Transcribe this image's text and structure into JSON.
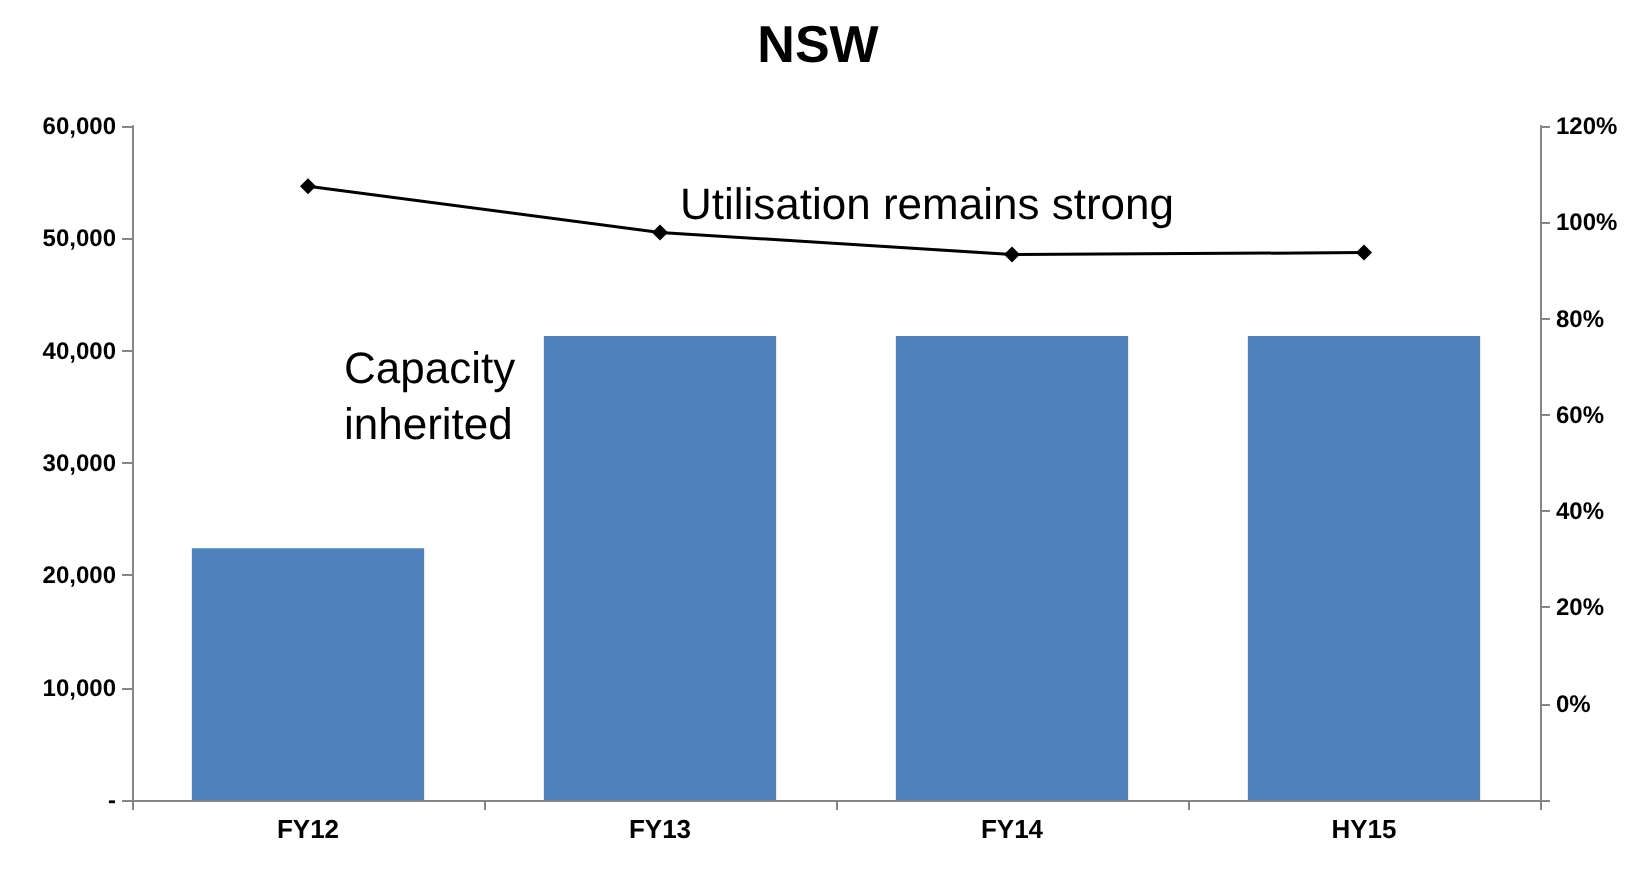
{
  "chart_data": {
    "type": "bar",
    "title": "NSW",
    "categories": [
      "FY12",
      "FY13",
      "FY14",
      "HY15"
    ],
    "series": [
      {
        "color": "#4f81bd",
        "values": [
          22400,
          41300,
          41300,
          41300
        ]
      },
      {
        "type": "line",
        "axis": "y2",
        "color": "#000000",
        "values": [
          107.5,
          97.9,
          93.3,
          93.7
        ]
      }
    ],
    "ylim": [
      0,
      60000
    ],
    "yticks": [
      {
        "value": 0,
        "label": "-"
      },
      {
        "value": 10000,
        "label": "10,000"
      },
      {
        "value": 20000,
        "label": "20,000"
      },
      {
        "value": 30000,
        "label": "30,000"
      },
      {
        "value": 40000,
        "label": "40,000"
      },
      {
        "value": 50000,
        "label": "50,000"
      },
      {
        "value": 60000,
        "label": "60,000"
      }
    ],
    "y2lim": [
      -20,
      120
    ],
    "y2ticks": [
      {
        "value": -20,
        "label": null
      },
      {
        "value": 0,
        "label": "0%"
      },
      {
        "value": 20,
        "label": "20%"
      },
      {
        "value": 40,
        "label": "40%"
      },
      {
        "value": 60,
        "label": "60%"
      },
      {
        "value": 80,
        "label": "80%"
      },
      {
        "value": 100,
        "label": "100%"
      },
      {
        "value": 120,
        "label": "120%"
      }
    ],
    "marker": "diamond",
    "grid": false,
    "annotations": [
      "Capacity inherited",
      "Utilisation remains strong"
    ]
  }
}
